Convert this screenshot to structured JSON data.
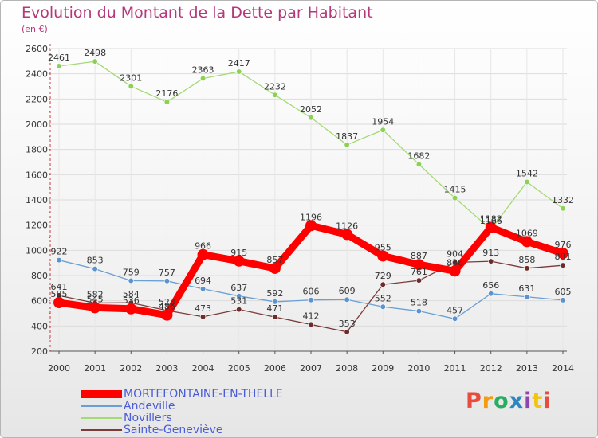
{
  "header": {
    "title": "Evolution du Montant de la Dette par Habitant",
    "unit": "(en €)"
  },
  "logo": {
    "text": "Proxiti",
    "letters": [
      "P",
      "r",
      "o",
      "x",
      "i",
      "t",
      "i"
    ],
    "colors": [
      "#e74c3c",
      "#f39c12",
      "#27ae60",
      "#2e86c1",
      "#8e44ad",
      "#f1c40f",
      "#e74c3c"
    ]
  },
  "chart_data": {
    "type": "line",
    "title": "Evolution du Montant de la Dette par Habitant",
    "ylabel": "(en €)",
    "xlabel": "",
    "x": [
      "2000",
      "2001",
      "2002",
      "2003",
      "2004",
      "2005",
      "2006",
      "2007",
      "2008",
      "2009",
      "2010",
      "2011",
      "2012",
      "2013",
      "2014"
    ],
    "ylim": [
      200,
      2600
    ],
    "yticks": [
      200,
      400,
      600,
      800,
      1000,
      1200,
      1400,
      1600,
      1800,
      2000,
      2200,
      2400,
      2600
    ],
    "grid": true,
    "legend_position": "bottom-left",
    "series": [
      {
        "name": "MORTEFONTAINE-EN-THELLE",
        "color": "#ff0000",
        "marker": "#ff0000",
        "values": [
          585,
          545,
          536,
          486,
          966,
          915,
          857,
          1196,
          1126,
          955,
          887,
          836,
          1182,
          1069,
          976
        ],
        "labels": [
          "585",
          "545",
          "536",
          "486",
          "966",
          "915",
          "857",
          "1196",
          "1126",
          "955",
          "887",
          "836",
          "1182",
          "1069",
          "976"
        ]
      },
      {
        "name": "Andeville",
        "color": "#6a9fd4",
        "marker": "#5b93cf",
        "values": [
          922,
          853,
          759,
          757,
          694,
          637,
          592,
          606,
          609,
          552,
          518,
          457,
          656,
          631,
          605
        ],
        "labels": [
          "922",
          "853",
          "759",
          "757",
          "694",
          "637",
          "592",
          "606",
          "609",
          "552",
          "518",
          "457",
          "656",
          "631",
          "605"
        ]
      },
      {
        "name": "Novillers",
        "color": "#a4da73",
        "marker": "#8bd153",
        "values": [
          2461,
          2498,
          2301,
          2176,
          2363,
          2417,
          2232,
          2052,
          1837,
          1954,
          1682,
          1415,
          1166,
          1542,
          1332
        ],
        "labels": [
          "2461",
          "2498",
          "2301",
          "2176",
          "2363",
          "2417",
          "2232",
          "2052",
          "1837",
          "1954",
          "1682",
          "1415",
          "1166",
          "1542",
          "1332"
        ]
      },
      {
        "name": "Sainte-Geneviève",
        "color": "#7c3a3a",
        "marker": "#6e2b2b",
        "values": [
          641,
          582,
          584,
          523,
          473,
          531,
          471,
          412,
          353,
          729,
          761,
          904,
          913,
          858,
          881
        ],
        "labels": [
          "641",
          "582",
          "584",
          "523",
          "473",
          "531",
          "471",
          "412",
          "353",
          "729",
          "761",
          "904",
          "913",
          "858",
          "881"
        ]
      }
    ]
  }
}
